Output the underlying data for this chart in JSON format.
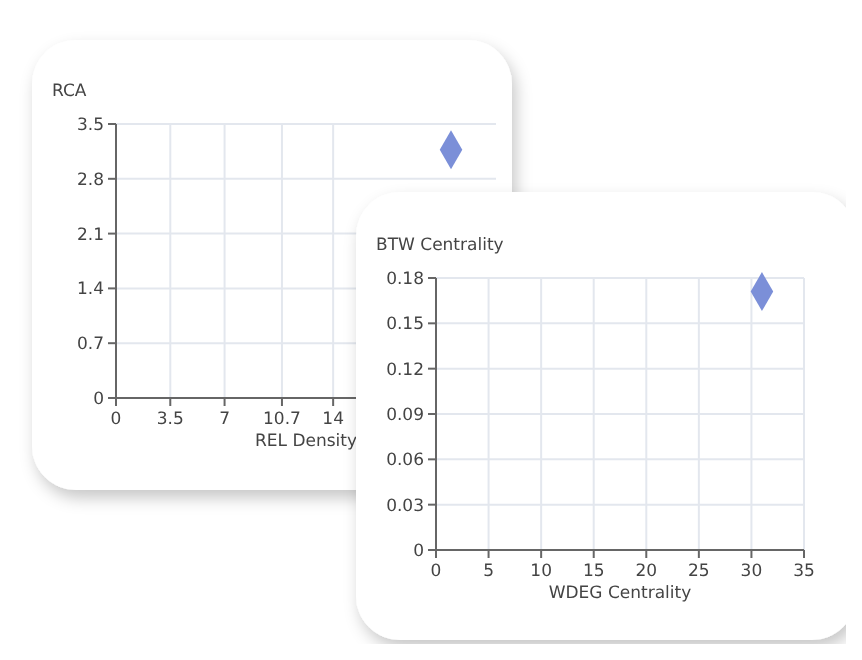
{
  "chart_data": [
    {
      "type": "scatter",
      "ylabel": "RCA",
      "xlabel": "REL Density",
      "x": [
        21.6
      ],
      "values": [
        3.17
      ],
      "color": "#7b8fd8",
      "marker": "diamond",
      "xlim": [
        0,
        24.5
      ],
      "ylim": [
        0,
        3.5
      ],
      "xticks": [
        0,
        3.5,
        7,
        10.7,
        14
      ],
      "yticks": [
        0,
        0.7,
        1.4,
        2.1,
        2.8,
        3.5
      ],
      "grid": true
    },
    {
      "type": "scatter",
      "ylabel": "BTW Centrality",
      "xlabel": "WDEG Centrality",
      "x": [
        31
      ],
      "values": [
        0.171
      ],
      "color": "#7b8fd8",
      "marker": "diamond",
      "xlim": [
        0,
        35
      ],
      "ylim": [
        0,
        0.18
      ],
      "xticks": [
        0,
        5,
        10,
        15,
        20,
        25,
        30,
        35
      ],
      "yticks": [
        0,
        0.03,
        0.06,
        0.09,
        0.12,
        0.15,
        0.18
      ],
      "grid": true
    }
  ]
}
